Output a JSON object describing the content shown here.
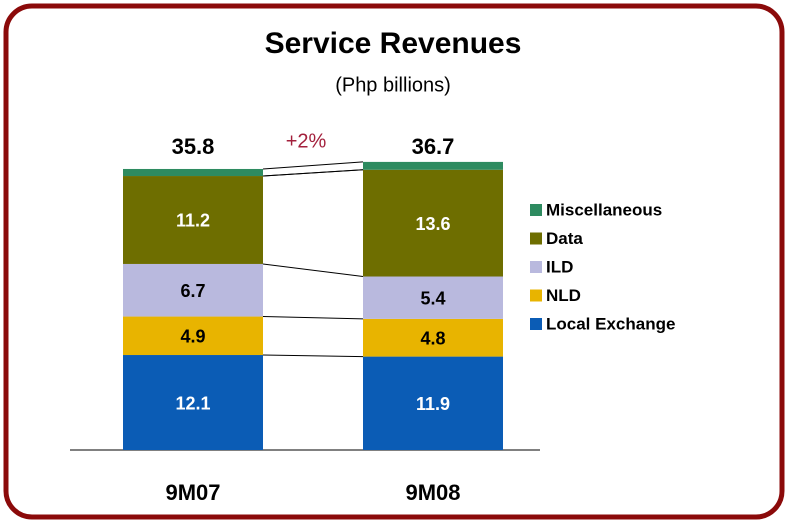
{
  "chart_data": {
    "type": "stacked_bar",
    "title": "Service Revenues",
    "subtitle": "(Php billions)",
    "annotation": "+2%",
    "categories": [
      "9M07",
      "9M08"
    ],
    "totals": [
      35.8,
      36.7
    ],
    "series": [
      {
        "name": "Local Exchange",
        "color": "#0b5cb5",
        "label_color": "#ffffff",
        "values": [
          12.1,
          11.9
        ]
      },
      {
        "name": "NLD",
        "color": "#e8b400",
        "label_color": "#000000",
        "values": [
          4.9,
          4.8
        ]
      },
      {
        "name": "ILD",
        "color": "#b9b9de",
        "label_color": "#000000",
        "values": [
          6.7,
          5.4
        ]
      },
      {
        "name": "Data",
        "color": "#6e6e00",
        "label_color": "#ffffff",
        "values": [
          11.2,
          13.6
        ]
      },
      {
        "name": "Miscellaneous",
        "color": "#2e8b60",
        "values": [
          0.9,
          1.0
        ]
      }
    ],
    "ylim": [
      0,
      40
    ]
  }
}
